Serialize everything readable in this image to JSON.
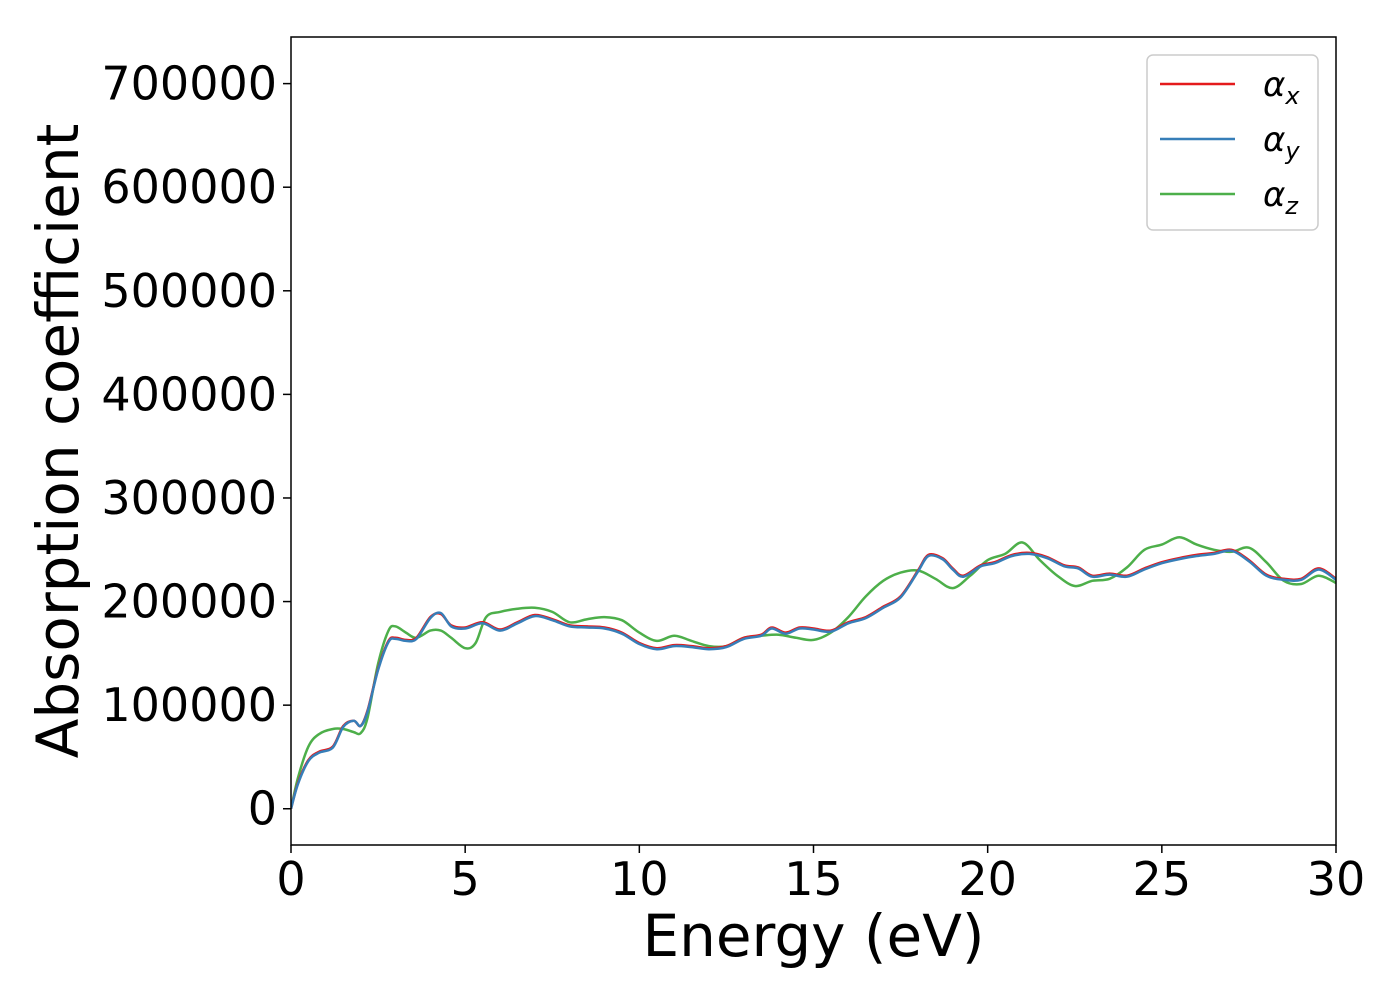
{
  "chart_data": {
    "type": "line",
    "xlabel": "Energy (eV)",
    "ylabel": "Absorption coefficient",
    "xlim": [
      0,
      30
    ],
    "ylim": [
      -35000,
      745000
    ],
    "xticks": [
      0,
      5,
      10,
      15,
      20,
      25,
      30
    ],
    "xtick_labels": [
      "0",
      "5",
      "10",
      "15",
      "20",
      "25",
      "30"
    ],
    "yticks": [
      0,
      100000,
      200000,
      300000,
      400000,
      500000,
      600000,
      700000
    ],
    "ytick_labels": [
      "0",
      "100000",
      "200000",
      "300000",
      "400000",
      "500000",
      "600000",
      "700000"
    ],
    "grid": false,
    "legend_position": "top-right",
    "series": [
      {
        "name": "α",
        "subscript": "x",
        "color": "#e41a1c",
        "x": [
          0,
          0.2,
          0.5,
          0.8,
          1.2,
          1.5,
          1.8,
          2.0,
          2.2,
          2.5,
          2.8,
          3.0,
          3.3,
          3.6,
          4.0,
          4.3,
          4.6,
          5.0,
          5.5,
          6.0,
          6.5,
          7.0,
          7.5,
          8.0,
          8.5,
          9.0,
          9.5,
          10.0,
          10.5,
          11.0,
          11.5,
          12.0,
          12.5,
          13.0,
          13.5,
          13.8,
          14.2,
          14.6,
          15.0,
          15.5,
          16.0,
          16.5,
          17.0,
          17.5,
          18.0,
          18.3,
          18.7,
          19.0,
          19.3,
          19.8,
          20.2,
          20.7,
          21.2,
          21.7,
          22.2,
          22.6,
          23.0,
          23.5,
          24.0,
          24.5,
          25.0,
          25.5,
          26.0,
          26.5,
          27.0,
          27.5,
          28.0,
          28.5,
          29.0,
          29.5,
          30.0
        ],
        "values": [
          0,
          25000,
          47000,
          55000,
          60000,
          80000,
          85000,
          80000,
          95000,
          135000,
          162000,
          165000,
          163000,
          165000,
          185000,
          188000,
          177000,
          175000,
          180000,
          173000,
          180000,
          187000,
          183000,
          177000,
          176000,
          175000,
          170000,
          160000,
          155000,
          158000,
          157000,
          155000,
          157000,
          165000,
          168000,
          175000,
          170000,
          175000,
          174000,
          172000,
          180000,
          185000,
          195000,
          205000,
          230000,
          245000,
          242000,
          232000,
          225000,
          235000,
          238000,
          245000,
          247000,
          243000,
          235000,
          233000,
          225000,
          227000,
          225000,
          232000,
          238000,
          242000,
          245000,
          247000,
          250000,
          240000,
          226000,
          222000,
          222000,
          232000,
          222000
        ]
      },
      {
        "name": "α",
        "subscript": "y",
        "color": "#377eb8",
        "x": [
          0,
          0.2,
          0.5,
          0.8,
          1.2,
          1.5,
          1.8,
          2.0,
          2.2,
          2.5,
          2.8,
          3.0,
          3.3,
          3.6,
          4.0,
          4.3,
          4.6,
          5.0,
          5.5,
          6.0,
          6.5,
          7.0,
          7.5,
          8.0,
          8.5,
          9.0,
          9.5,
          10.0,
          10.5,
          11.0,
          11.5,
          12.0,
          12.5,
          13.0,
          13.5,
          13.8,
          14.2,
          14.6,
          15.0,
          15.5,
          16.0,
          16.5,
          17.0,
          17.5,
          18.0,
          18.3,
          18.7,
          19.0,
          19.3,
          19.8,
          20.2,
          20.7,
          21.2,
          21.7,
          22.2,
          22.6,
          23.0,
          23.5,
          24.0,
          24.5,
          25.0,
          25.5,
          26.0,
          26.5,
          27.0,
          27.5,
          28.0,
          28.5,
          29.0,
          29.5,
          30.0
        ],
        "values": [
          0,
          24000,
          46000,
          54000,
          59000,
          79000,
          85000,
          80000,
          94000,
          134000,
          161000,
          164000,
          162000,
          164000,
          184000,
          189000,
          176000,
          174000,
          179000,
          172000,
          179000,
          186000,
          182000,
          176000,
          175000,
          174000,
          169000,
          159000,
          154000,
          157000,
          156000,
          154000,
          156000,
          164000,
          167000,
          174000,
          169000,
          174000,
          173000,
          171000,
          179000,
          184000,
          194000,
          204000,
          229000,
          244000,
          241000,
          231000,
          224000,
          234000,
          237000,
          244000,
          246000,
          242000,
          234000,
          232000,
          224000,
          226000,
          224000,
          231000,
          237000,
          241000,
          244000,
          246000,
          249000,
          239000,
          225000,
          221000,
          221000,
          231000,
          221000
        ]
      },
      {
        "name": "α",
        "subscript": "z",
        "color": "#4daf4a",
        "x": [
          0,
          0.2,
          0.5,
          0.8,
          1.2,
          1.5,
          1.8,
          2.0,
          2.2,
          2.5,
          2.8,
          3.0,
          3.3,
          3.6,
          4.0,
          4.3,
          4.6,
          5.0,
          5.3,
          5.6,
          6.0,
          6.5,
          7.0,
          7.5,
          8.0,
          8.5,
          9.0,
          9.5,
          10.0,
          10.5,
          11.0,
          11.5,
          12.0,
          12.5,
          13.0,
          13.5,
          14.0,
          14.5,
          15.0,
          15.5,
          16.0,
          16.5,
          17.0,
          17.5,
          18.0,
          18.5,
          19.0,
          19.5,
          20.0,
          20.5,
          21.0,
          21.5,
          22.0,
          22.5,
          23.0,
          23.5,
          24.0,
          24.5,
          25.0,
          25.5,
          26.0,
          26.5,
          27.0,
          27.5,
          28.0,
          28.5,
          29.0,
          29.5,
          30.0
        ],
        "values": [
          0,
          30000,
          60000,
          72000,
          77000,
          77000,
          74000,
          73000,
          88000,
          140000,
          172000,
          176000,
          170000,
          165000,
          172000,
          172000,
          165000,
          155000,
          160000,
          185000,
          190000,
          193000,
          194000,
          190000,
          180000,
          183000,
          185000,
          182000,
          170000,
          162000,
          167000,
          162000,
          157000,
          157000,
          165000,
          167000,
          168000,
          165000,
          163000,
          170000,
          185000,
          205000,
          220000,
          228000,
          230000,
          222000,
          213000,
          225000,
          240000,
          246000,
          257000,
          240000,
          225000,
          215000,
          220000,
          222000,
          233000,
          250000,
          255000,
          262000,
          255000,
          250000,
          248000,
          252000,
          238000,
          220000,
          217000,
          225000,
          218000
        ]
      }
    ]
  }
}
